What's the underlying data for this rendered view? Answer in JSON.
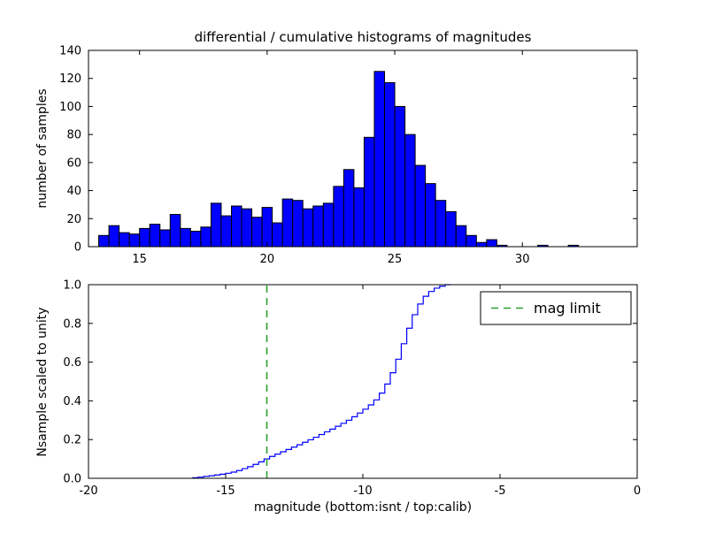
{
  "figure": {
    "background": "#ffffff"
  },
  "chart_data": [
    {
      "type": "bar",
      "title": "differential / cumulative histograms of magnitudes",
      "ylabel": "number of samples",
      "xlabel": "",
      "xlim": [
        13,
        34.5
      ],
      "ylim": [
        0,
        140
      ],
      "xtick_vals": [
        15,
        20,
        25,
        30
      ],
      "xtick_labels": [
        "15",
        "20",
        "25",
        "30"
      ],
      "ytick_vals": [
        0,
        20,
        40,
        60,
        80,
        100,
        120,
        140
      ],
      "ytick_labels": [
        "0",
        "20",
        "40",
        "60",
        "80",
        "100",
        "120",
        "140"
      ],
      "bar_fill": "#0000ff",
      "bar_edge": "#000000",
      "bin_width": 0.4,
      "bin_starts": [
        13.4,
        13.8,
        14.2,
        14.6,
        15.0,
        15.4,
        15.8,
        16.2,
        16.6,
        17.0,
        17.4,
        17.8,
        18.2,
        18.6,
        19.0,
        19.4,
        19.8,
        20.2,
        20.6,
        21.0,
        21.4,
        21.8,
        22.2,
        22.6,
        23.0,
        23.4,
        23.8,
        24.2,
        24.6,
        25.0,
        25.4,
        25.8,
        26.2,
        26.6,
        27.0,
        27.4,
        27.8,
        28.2,
        28.6,
        29.0,
        30.6,
        31.8
      ],
      "counts": [
        8,
        15,
        10,
        9,
        13,
        16,
        12,
        23,
        13,
        11,
        14,
        31,
        22,
        29,
        27,
        21,
        28,
        17,
        34,
        33,
        27,
        29,
        31,
        43,
        55,
        42,
        78,
        125,
        117,
        100,
        80,
        58,
        45,
        33,
        25,
        15,
        8,
        3,
        5,
        1,
        1,
        1
      ]
    },
    {
      "type": "line",
      "title": "",
      "ylabel": "Nsample scaled to unity",
      "xlabel": "magnitude (bottom:isnt / top:calib)",
      "xlim": [
        -20,
        0
      ],
      "ylim": [
        0,
        1
      ],
      "xtick_vals": [
        -20,
        -15,
        -10,
        -5,
        0
      ],
      "xtick_labels": [
        "-20",
        "-15",
        "-10",
        "-5",
        "0"
      ],
      "ytick_vals": [
        0,
        0.2,
        0.4,
        0.6,
        0.8,
        1.0
      ],
      "ytick_labels": [
        "0.0",
        "0.2",
        "0.4",
        "0.6",
        "0.8",
        "1.0"
      ],
      "line_color": "#0000ff",
      "steps": [
        [
          -16.2,
          0.003
        ],
        [
          -16.0,
          0.006
        ],
        [
          -15.8,
          0.01
        ],
        [
          -15.6,
          0.013
        ],
        [
          -15.4,
          0.017
        ],
        [
          -15.2,
          0.021
        ],
        [
          -15.0,
          0.026
        ],
        [
          -14.8,
          0.032
        ],
        [
          -14.6,
          0.04
        ],
        [
          -14.4,
          0.05
        ],
        [
          -14.2,
          0.06
        ],
        [
          -14.0,
          0.072
        ],
        [
          -13.8,
          0.085
        ],
        [
          -13.6,
          0.1
        ],
        [
          -13.4,
          0.113
        ],
        [
          -13.2,
          0.125
        ],
        [
          -13.0,
          0.137
        ],
        [
          -12.8,
          0.149
        ],
        [
          -12.6,
          0.161
        ],
        [
          -12.4,
          0.173
        ],
        [
          -12.2,
          0.186
        ],
        [
          -12.0,
          0.199
        ],
        [
          -11.8,
          0.212
        ],
        [
          -11.6,
          0.226
        ],
        [
          -11.4,
          0.24
        ],
        [
          -11.2,
          0.254
        ],
        [
          -11.0,
          0.269
        ],
        [
          -10.8,
          0.284
        ],
        [
          -10.6,
          0.3
        ],
        [
          -10.4,
          0.318
        ],
        [
          -10.2,
          0.337
        ],
        [
          -10.0,
          0.357
        ],
        [
          -9.8,
          0.379
        ],
        [
          -9.6,
          0.405
        ],
        [
          -9.4,
          0.44
        ],
        [
          -9.2,
          0.487
        ],
        [
          -9.0,
          0.545
        ],
        [
          -8.8,
          0.615
        ],
        [
          -8.6,
          0.695
        ],
        [
          -8.4,
          0.775
        ],
        [
          -8.2,
          0.845
        ],
        [
          -8.0,
          0.9
        ],
        [
          -7.8,
          0.94
        ],
        [
          -7.6,
          0.965
        ],
        [
          -7.4,
          0.982
        ],
        [
          -7.2,
          0.992
        ],
        [
          -7.0,
          1.0
        ]
      ],
      "mag_limit": {
        "x": -13.5,
        "color": "#2ca02c",
        "label": "mag limit"
      },
      "legend": {
        "position": "upper right"
      }
    }
  ]
}
